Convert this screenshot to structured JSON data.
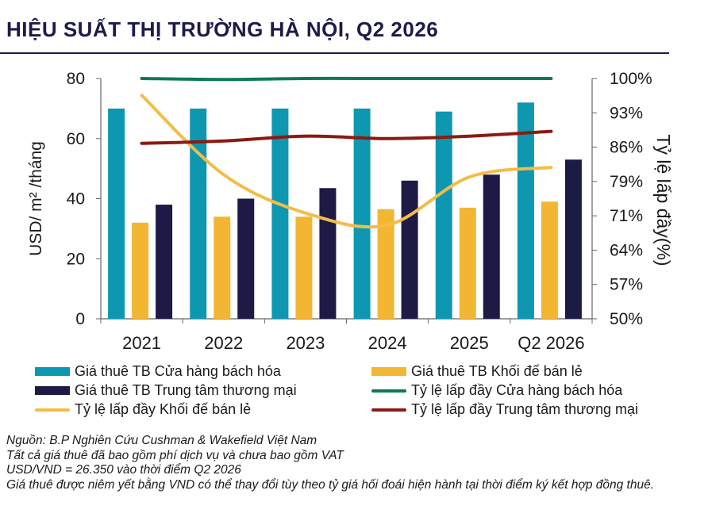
{
  "page": {
    "title": "HIỆU SUẤT THỊ TRƯỜNG HÀ NỘI, Q2 2026",
    "notes": [
      "Nguồn: B.P Nghiên Cứu Cushman & Wakefield Việt Nam",
      "Tất cả giá thuê đã bao gồm phí dịch vụ và chưa bao gồm VAT",
      "USD/VND = 26.350 vào thời điểm Q2 2026",
      "Giá thuê được niêm yết bằng VND có thể thay đổi tùy theo tỷ giá hối đoái hiện hành tại thời điểm ký kết hợp đồng thuê."
    ]
  },
  "chart_data": {
    "type": "bar",
    "title": "HIỆU SUẤT THỊ TRƯỜNG HÀ NỘI, Q2 2026",
    "categories": [
      "2021",
      "2022",
      "2023",
      "2024",
      "2025",
      "Q2 2026"
    ],
    "ylabel": "USD/ m² /tháng",
    "ylabel_right": "Tỷ lệ lấp đầy(%)",
    "ylim": [
      0,
      80
    ],
    "yticks": [
      "0",
      "20",
      "40",
      "60",
      "80"
    ],
    "ylim_right": [
      50,
      100
    ],
    "yticks_right": [
      "50%",
      "57%",
      "64%",
      "71%",
      "79%",
      "86%",
      "93%",
      "100%"
    ],
    "grid": false,
    "legend_position": "bottom",
    "series": [
      {
        "name": "Giá thuê TB Cửa hàng bách hóa",
        "kind": "bar",
        "axis": "left",
        "color": "#0e97b0",
        "values": [
          70,
          70,
          70,
          70,
          69,
          72
        ]
      },
      {
        "name": "Giá thuê TB Khối đế bán lẻ",
        "kind": "bar",
        "axis": "left",
        "color": "#f2b632",
        "values": [
          32,
          34,
          34,
          36.5,
          37,
          39
        ]
      },
      {
        "name": "Giá thuê TB Trung tâm thương mại",
        "kind": "bar",
        "axis": "left",
        "color": "#1d1a45",
        "values": [
          38,
          40,
          43.5,
          46,
          48,
          53
        ]
      },
      {
        "name": "Tỷ lệ lấp đầy Cửa hàng bách hóa",
        "kind": "line",
        "axis": "right",
        "color": "#0f7a52",
        "values": [
          100,
          99.8,
          100,
          100,
          100,
          100
        ]
      },
      {
        "name": "Tỷ lệ lấp đầy Khối đế bán lẻ",
        "kind": "line",
        "axis": "right",
        "color": "#f2bd47",
        "values": [
          96.5,
          80,
          72,
          69.5,
          79.5,
          81.5
        ]
      },
      {
        "name": "Tỷ lệ lấp đầy Trung tâm thương mại",
        "kind": "line",
        "axis": "right",
        "color": "#8b1a10",
        "values": [
          86.5,
          87,
          88,
          87.5,
          88,
          89
        ]
      }
    ]
  }
}
